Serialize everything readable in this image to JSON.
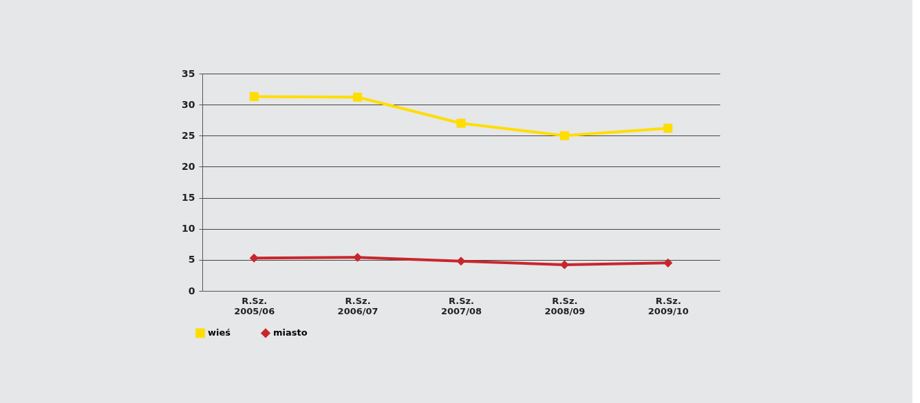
{
  "chart_data": {
    "type": "line",
    "categories": [
      "R.Sz. 2005/06",
      "R.Sz. 2006/07",
      "R.Sz. 2007/08",
      "R.Sz. 2008/09",
      "R.Sz. 2009/10"
    ],
    "series": [
      {
        "name": "wieś",
        "color": "#ffdd00",
        "marker": "square",
        "values": [
          31.3,
          31.2,
          27.0,
          25.0,
          26.2
        ]
      },
      {
        "name": "miasto",
        "color": "#c8262e",
        "marker": "diamond",
        "values": [
          5.3,
          5.4,
          4.8,
          4.2,
          4.5
        ]
      }
    ],
    "ylim": [
      0,
      35
    ],
    "yticks": [
      0,
      5,
      10,
      15,
      20,
      25,
      30,
      35
    ],
    "grid": "y",
    "legend": "bottom left",
    "marker": "square",
    "line_style": "solid"
  }
}
